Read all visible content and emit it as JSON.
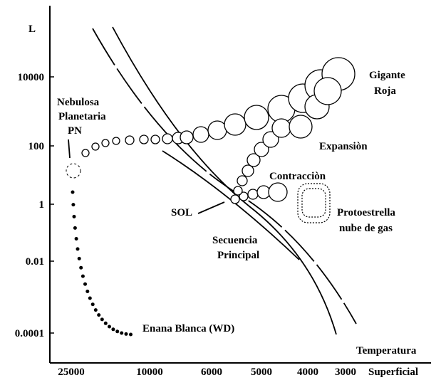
{
  "axes": {
    "y_label": "L",
    "y_ticks": [
      "10000",
      "100",
      "1",
      "0.01",
      "0.0001"
    ],
    "x_label": [
      "Temperatura",
      "Superficial"
    ],
    "x_ticks": [
      "25000",
      "10000",
      "6000",
      "5000",
      "4000",
      "3000"
    ]
  },
  "labels": {
    "giant": [
      "Gigante",
      "Roja"
    ],
    "expansion": "Expansiòn",
    "contraction": "Contracciòn",
    "protostar": [
      "Protoestrella",
      "nube de gas"
    ],
    "sun": "SOL",
    "main_sequence": [
      "Secuencia",
      "Principal"
    ],
    "white_dwarf": "Enana Blanca (WD)",
    "nebula": [
      "Nebulosa",
      "Planetaria",
      "PN"
    ]
  }
}
